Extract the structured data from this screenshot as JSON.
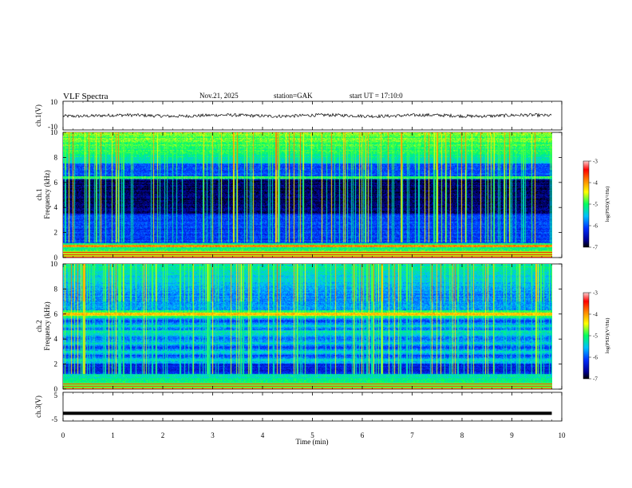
{
  "header": {
    "title": "VLF Spectra",
    "date": "Nov.21, 2025",
    "station": "station=GAK",
    "start": "start UT = 17:10:0"
  },
  "chart_data": [
    {
      "type": "line",
      "name": "ch1-waveform",
      "ylabel": "ch.1(V)",
      "ylim": [
        -10,
        10
      ],
      "yticks": [
        "10",
        "-10"
      ],
      "approx_level": 0
    },
    {
      "type": "heatmap",
      "name": "ch1-spectrogram",
      "ylabel": "ch.1 Frequency (kHz)",
      "ylim": [
        0,
        10
      ],
      "yticks": [
        "0",
        "2",
        "4",
        "6",
        "8",
        "10"
      ],
      "colorbar": {
        "label": "log(PSD)(V²/Hz)",
        "range": [
          -7,
          -3
        ],
        "ticks": [
          "-3",
          "-4",
          "-5",
          "-6",
          "-7"
        ]
      }
    },
    {
      "type": "heatmap",
      "name": "ch2-spectrogram",
      "ylabel": "ch.2 Frequency (kHz)",
      "ylim": [
        0,
        10
      ],
      "yticks": [
        "0",
        "2",
        "4",
        "6",
        "8",
        "10"
      ],
      "colorbar": {
        "label": "log(PSD)(V²/Hz)",
        "range": [
          -7,
          -3
        ],
        "ticks": [
          "-3",
          "-4",
          "-5",
          "-6",
          "-7"
        ]
      }
    },
    {
      "type": "line",
      "name": "ch3-waveform",
      "ylabel": "ch.3(V)",
      "ylim": [
        -5,
        5
      ],
      "yticks": [
        "5",
        "-5"
      ],
      "approx_level": -2.3
    }
  ],
  "xaxis": {
    "label": "Time (min)",
    "range": [
      0,
      10
    ],
    "data_end": 9.8,
    "ticks": [
      "0",
      "1",
      "2",
      "3",
      "4",
      "5",
      "6",
      "7",
      "8",
      "9",
      "10"
    ]
  },
  "colors": {
    "background": "#ffffff",
    "axes": "#000000",
    "low": "#000080",
    "high": "#ff0000"
  }
}
